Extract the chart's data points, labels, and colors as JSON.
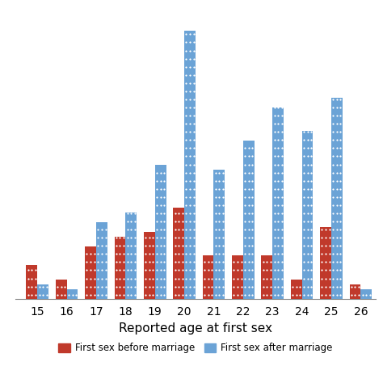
{
  "ages": [
    15,
    16,
    17,
    18,
    19,
    20,
    21,
    22,
    23,
    24,
    25,
    26
  ],
  "before_marriage": [
    3.5,
    2.0,
    5.5,
    6.5,
    7.0,
    9.5,
    4.5,
    4.5,
    4.5,
    2.0,
    7.5,
    1.5
  ],
  "after_marriage": [
    1.5,
    1.0,
    8.0,
    9.0,
    14.0,
    28.0,
    13.5,
    16.5,
    20.0,
    17.5,
    21.0,
    1.0
  ],
  "xlabel": "Reported age at first sex",
  "legend_before": "First sex before marriage",
  "legend_after": "First sex after marriage",
  "color_before": "#C0392B",
  "color_after": "#6BA3D6",
  "ylim": [
    0,
    30
  ],
  "bar_width": 0.38,
  "background": "#FFFFFF",
  "grid_color": "#CCCCCC"
}
